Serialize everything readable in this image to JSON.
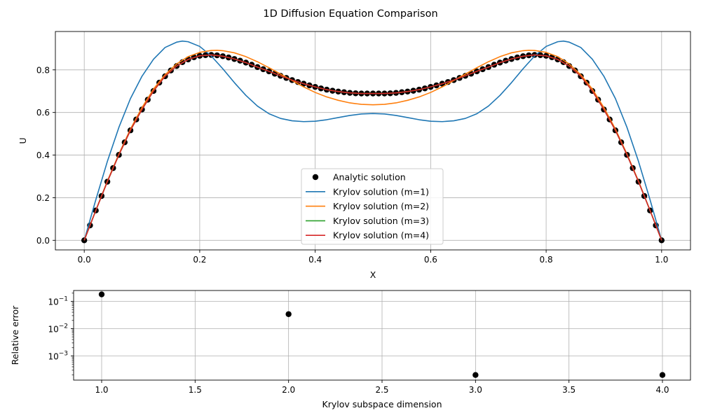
{
  "figure": {
    "title": "1D Diffusion Equation Comparison"
  },
  "chart_data": [
    {
      "type": "line",
      "title": "1D Diffusion Equation Comparison",
      "xlabel": "X",
      "ylabel": "U",
      "xlim": [
        -0.05,
        1.05
      ],
      "ylim": [
        -0.045,
        0.98
      ],
      "xticks": [
        0.0,
        0.2,
        0.4,
        0.6,
        0.8,
        1.0
      ],
      "yticks": [
        0.0,
        0.2,
        0.4,
        0.6,
        0.8
      ],
      "grid": true,
      "legend_position": "lower-center",
      "series": [
        {
          "name": "Analytic solution",
          "kind": "scatter",
          "color": "#000000",
          "x": [
            0.0,
            0.01,
            0.02,
            0.03,
            0.04,
            0.05,
            0.06,
            0.07,
            0.08,
            0.09,
            0.1,
            0.11,
            0.12,
            0.13,
            0.14,
            0.15,
            0.16,
            0.17,
            0.18,
            0.19,
            0.2,
            0.21,
            0.22,
            0.23,
            0.24,
            0.25,
            0.26,
            0.27,
            0.28,
            0.29,
            0.3,
            0.31,
            0.32,
            0.33,
            0.34,
            0.35,
            0.36,
            0.37,
            0.38,
            0.39,
            0.4,
            0.41,
            0.42,
            0.43,
            0.44,
            0.45,
            0.46,
            0.47,
            0.48,
            0.49,
            0.5,
            0.51,
            0.52,
            0.53,
            0.54,
            0.55,
            0.56,
            0.57,
            0.58,
            0.59,
            0.6,
            0.61,
            0.62,
            0.63,
            0.64,
            0.65,
            0.66,
            0.67,
            0.68,
            0.69,
            0.7,
            0.71,
            0.72,
            0.73,
            0.74,
            0.75,
            0.76,
            0.77,
            0.78,
            0.79,
            0.8,
            0.81,
            0.82,
            0.83,
            0.84,
            0.85,
            0.86,
            0.87,
            0.88,
            0.89,
            0.9,
            0.91,
            0.92,
            0.93,
            0.94,
            0.95,
            0.96,
            0.97,
            0.98,
            0.99,
            1.0
          ],
          "y": [
            0.0,
            0.07,
            0.14,
            0.208,
            0.275,
            0.339,
            0.401,
            0.46,
            0.516,
            0.567,
            0.614,
            0.66,
            0.701,
            0.74,
            0.77,
            0.797,
            0.818,
            0.836,
            0.849,
            0.859,
            0.866,
            0.869,
            0.87,
            0.868,
            0.864,
            0.858,
            0.851,
            0.843,
            0.834,
            0.824,
            0.813,
            0.803,
            0.793,
            0.782,
            0.772,
            0.762,
            0.752,
            0.743,
            0.735,
            0.727,
            0.72,
            0.713,
            0.707,
            0.702,
            0.698,
            0.695,
            0.692,
            0.69,
            0.689,
            0.689,
            0.689,
            0.689,
            0.689,
            0.69,
            0.692,
            0.695,
            0.698,
            0.702,
            0.707,
            0.713,
            0.72,
            0.727,
            0.735,
            0.743,
            0.752,
            0.762,
            0.772,
            0.782,
            0.793,
            0.803,
            0.813,
            0.824,
            0.834,
            0.843,
            0.851,
            0.858,
            0.864,
            0.868,
            0.87,
            0.869,
            0.866,
            0.859,
            0.849,
            0.836,
            0.818,
            0.797,
            0.77,
            0.74,
            0.701,
            0.66,
            0.614,
            0.567,
            0.516,
            0.46,
            0.401,
            0.339,
            0.275,
            0.208,
            0.14,
            0.07,
            0.0
          ]
        },
        {
          "name": "Krylov solution (m=1)",
          "kind": "line",
          "color": "#1f77b4",
          "x": [
            0.0,
            0.02,
            0.04,
            0.06,
            0.08,
            0.1,
            0.12,
            0.14,
            0.16,
            0.17,
            0.18,
            0.2,
            0.22,
            0.24,
            0.26,
            0.28,
            0.3,
            0.32,
            0.34,
            0.36,
            0.38,
            0.4,
            0.42,
            0.44,
            0.46,
            0.48,
            0.5,
            0.52,
            0.54,
            0.56,
            0.58,
            0.6,
            0.62,
            0.64,
            0.66,
            0.68,
            0.7,
            0.72,
            0.74,
            0.76,
            0.78,
            0.8,
            0.82,
            0.83,
            0.84,
            0.86,
            0.88,
            0.9,
            0.92,
            0.94,
            0.96,
            0.98,
            1.0
          ],
          "y": [
            0.0,
            0.19,
            0.37,
            0.53,
            0.665,
            0.77,
            0.85,
            0.905,
            0.93,
            0.935,
            0.932,
            0.91,
            0.865,
            0.805,
            0.74,
            0.68,
            0.63,
            0.594,
            0.572,
            0.561,
            0.557,
            0.559,
            0.566,
            0.576,
            0.586,
            0.593,
            0.595,
            0.593,
            0.586,
            0.576,
            0.566,
            0.559,
            0.557,
            0.561,
            0.572,
            0.594,
            0.63,
            0.68,
            0.74,
            0.805,
            0.865,
            0.91,
            0.932,
            0.935,
            0.93,
            0.905,
            0.85,
            0.77,
            0.665,
            0.53,
            0.37,
            0.19,
            0.0
          ]
        },
        {
          "name": "Krylov solution (m=2)",
          "kind": "line",
          "color": "#ff7f0e",
          "x": [
            0.0,
            0.02,
            0.04,
            0.06,
            0.08,
            0.1,
            0.12,
            0.14,
            0.16,
            0.18,
            0.2,
            0.22,
            0.23,
            0.24,
            0.26,
            0.28,
            0.3,
            0.32,
            0.34,
            0.36,
            0.38,
            0.4,
            0.42,
            0.44,
            0.46,
            0.48,
            0.5,
            0.52,
            0.54,
            0.56,
            0.58,
            0.6,
            0.62,
            0.64,
            0.66,
            0.68,
            0.7,
            0.72,
            0.74,
            0.76,
            0.77,
            0.78,
            0.8,
            0.82,
            0.84,
            0.86,
            0.88,
            0.9,
            0.92,
            0.94,
            0.96,
            0.98,
            1.0
          ],
          "y": [
            0.0,
            0.14,
            0.278,
            0.405,
            0.522,
            0.623,
            0.71,
            0.777,
            0.828,
            0.862,
            0.882,
            0.891,
            0.892,
            0.89,
            0.88,
            0.862,
            0.838,
            0.81,
            0.78,
            0.75,
            0.72,
            0.694,
            0.673,
            0.657,
            0.645,
            0.638,
            0.636,
            0.638,
            0.645,
            0.657,
            0.673,
            0.694,
            0.72,
            0.75,
            0.78,
            0.81,
            0.838,
            0.862,
            0.88,
            0.89,
            0.892,
            0.891,
            0.882,
            0.862,
            0.828,
            0.777,
            0.71,
            0.623,
            0.522,
            0.405,
            0.278,
            0.14,
            0.0
          ]
        },
        {
          "name": "Krylov solution (m=3)",
          "kind": "line",
          "color": "#2ca02c",
          "x": [
            0.0,
            0.02,
            0.04,
            0.06,
            0.08,
            0.1,
            0.12,
            0.14,
            0.16,
            0.18,
            0.2,
            0.22,
            0.24,
            0.26,
            0.28,
            0.3,
            0.32,
            0.34,
            0.36,
            0.38,
            0.4,
            0.42,
            0.44,
            0.46,
            0.48,
            0.5,
            0.52,
            0.54,
            0.56,
            0.58,
            0.6,
            0.62,
            0.64,
            0.66,
            0.68,
            0.7,
            0.72,
            0.74,
            0.76,
            0.78,
            0.8,
            0.82,
            0.84,
            0.86,
            0.88,
            0.9,
            0.92,
            0.94,
            0.96,
            0.98,
            1.0
          ],
          "y": [
            0.0,
            0.14,
            0.275,
            0.401,
            0.516,
            0.614,
            0.701,
            0.77,
            0.818,
            0.849,
            0.866,
            0.87,
            0.864,
            0.851,
            0.834,
            0.813,
            0.793,
            0.772,
            0.752,
            0.735,
            0.72,
            0.707,
            0.698,
            0.692,
            0.689,
            0.689,
            0.689,
            0.692,
            0.698,
            0.707,
            0.72,
            0.735,
            0.752,
            0.772,
            0.793,
            0.813,
            0.834,
            0.851,
            0.864,
            0.87,
            0.866,
            0.849,
            0.818,
            0.77,
            0.701,
            0.614,
            0.516,
            0.401,
            0.275,
            0.14,
            0.0
          ]
        },
        {
          "name": "Krylov solution (m=4)",
          "kind": "line",
          "color": "#d62728",
          "x": [
            0.0,
            0.02,
            0.04,
            0.06,
            0.08,
            0.1,
            0.12,
            0.14,
            0.16,
            0.18,
            0.2,
            0.22,
            0.24,
            0.26,
            0.28,
            0.3,
            0.32,
            0.34,
            0.36,
            0.38,
            0.4,
            0.42,
            0.44,
            0.46,
            0.48,
            0.5,
            0.52,
            0.54,
            0.56,
            0.58,
            0.6,
            0.62,
            0.64,
            0.66,
            0.68,
            0.7,
            0.72,
            0.74,
            0.76,
            0.78,
            0.8,
            0.82,
            0.84,
            0.86,
            0.88,
            0.9,
            0.92,
            0.94,
            0.96,
            0.98,
            1.0
          ],
          "y": [
            0.0,
            0.14,
            0.275,
            0.401,
            0.516,
            0.614,
            0.701,
            0.77,
            0.818,
            0.849,
            0.866,
            0.87,
            0.864,
            0.851,
            0.834,
            0.813,
            0.793,
            0.772,
            0.752,
            0.735,
            0.72,
            0.707,
            0.698,
            0.692,
            0.689,
            0.689,
            0.689,
            0.692,
            0.698,
            0.707,
            0.72,
            0.735,
            0.752,
            0.772,
            0.793,
            0.813,
            0.834,
            0.851,
            0.864,
            0.87,
            0.866,
            0.849,
            0.818,
            0.77,
            0.701,
            0.614,
            0.516,
            0.401,
            0.275,
            0.14,
            0.0
          ]
        }
      ]
    },
    {
      "type": "scatter",
      "xlabel": "Krylov subspace dimension",
      "ylabel": "Relative error",
      "xlim": [
        0.85,
        4.15
      ],
      "yscale": "log",
      "ylim": [
        0.00013,
        0.25
      ],
      "xticks": [
        1.0,
        1.5,
        2.0,
        2.5,
        3.0,
        3.5,
        4.0
      ],
      "xtick_labels": [
        "1.0",
        "1.5",
        "2.0",
        "2.5",
        "3.0",
        "3.5",
        "4.0"
      ],
      "yticks": [
        0.1,
        0.01,
        0.001
      ],
      "ytick_base_labels": [
        "10",
        "10",
        "10"
      ],
      "ytick_exponent_labels": [
        "−1",
        "−2",
        "−3"
      ],
      "grid": true,
      "series": [
        {
          "color": "#000000",
          "x": [
            1,
            2,
            3,
            4
          ],
          "y": [
            0.18,
            0.034,
            0.0002,
            0.0002
          ]
        }
      ]
    }
  ]
}
